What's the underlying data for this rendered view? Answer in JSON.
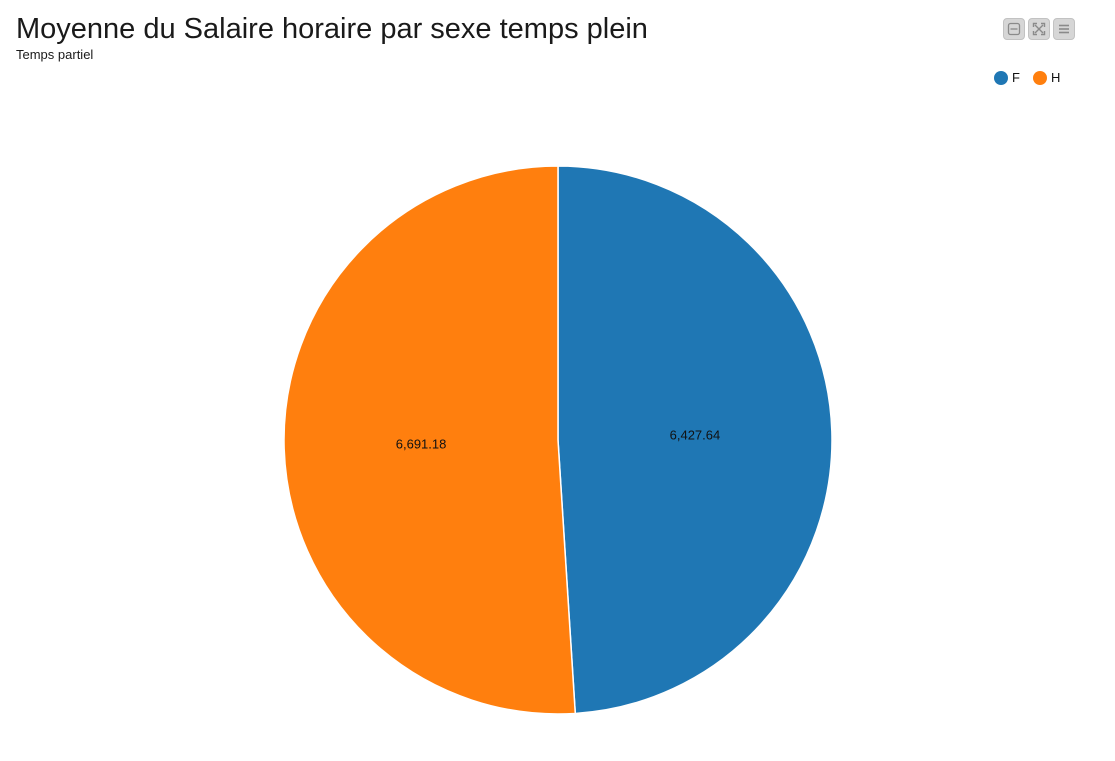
{
  "header": {
    "title": "Moyenne du Salaire horaire par sexe temps plein",
    "subtitle": "Temps partiel"
  },
  "toolbar": {
    "buttons": [
      {
        "name": "collapse-button",
        "icon": "minus-box-icon"
      },
      {
        "name": "fullscreen-button",
        "icon": "expand-icon"
      },
      {
        "name": "menu-button",
        "icon": "hamburger-icon"
      }
    ]
  },
  "chart_data": {
    "type": "pie",
    "title": "Moyenne du Salaire horaire par sexe temps plein",
    "subtitle": "Temps partiel",
    "legend_position": "top-right",
    "slices": [
      {
        "label": "F",
        "value": 6427.64,
        "display": "6,427.64",
        "color": "#1f77b4"
      },
      {
        "label": "H",
        "value": 6691.18,
        "display": "6,691.18",
        "color": "#ff7f0e"
      }
    ]
  }
}
